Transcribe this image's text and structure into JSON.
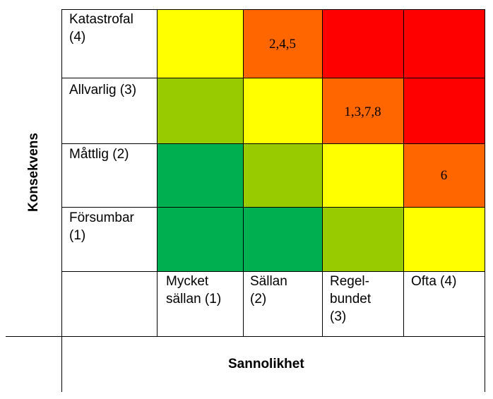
{
  "y_axis_title": "Konsekvens",
  "x_axis_title": "Sannolikhet",
  "rows": [
    {
      "label_line1": "Katastrofal",
      "label_line2": "(4)"
    },
    {
      "label_line1": "Allvarlig (3)",
      "label_line2": ""
    },
    {
      "label_line1": "Måttlig (2)",
      "label_line2": ""
    },
    {
      "label_line1": "Försumbar",
      "label_line2": "(1)"
    }
  ],
  "columns": [
    {
      "line1": "Mycket",
      "line2": "sällan (1)",
      "line3": ""
    },
    {
      "line1": "Sällan",
      "line2": "(2)",
      "line3": ""
    },
    {
      "line1": "Regel-",
      "line2": "bundet",
      "line3": "(3)"
    },
    {
      "line1": "Ofta (4)",
      "line2": "",
      "line3": ""
    }
  ],
  "matrix": [
    [
      {
        "color": "#ffff00",
        "text": ""
      },
      {
        "color": "#ff6600",
        "text": "2,4,5"
      },
      {
        "color": "#ff0000",
        "text": ""
      },
      {
        "color": "#ff0000",
        "text": ""
      }
    ],
    [
      {
        "color": "#99cc00",
        "text": ""
      },
      {
        "color": "#ffff00",
        "text": ""
      },
      {
        "color": "#ff6600",
        "text": "1,3,7,8"
      },
      {
        "color": "#ff0000",
        "text": ""
      }
    ],
    [
      {
        "color": "#00b050",
        "text": ""
      },
      {
        "color": "#99cc00",
        "text": ""
      },
      {
        "color": "#ffff00",
        "text": ""
      },
      {
        "color": "#ff6600",
        "text": "6"
      }
    ],
    [
      {
        "color": "#00b050",
        "text": ""
      },
      {
        "color": "#00b050",
        "text": ""
      },
      {
        "color": "#99cc00",
        "text": ""
      },
      {
        "color": "#ffff00",
        "text": ""
      }
    ]
  ]
}
